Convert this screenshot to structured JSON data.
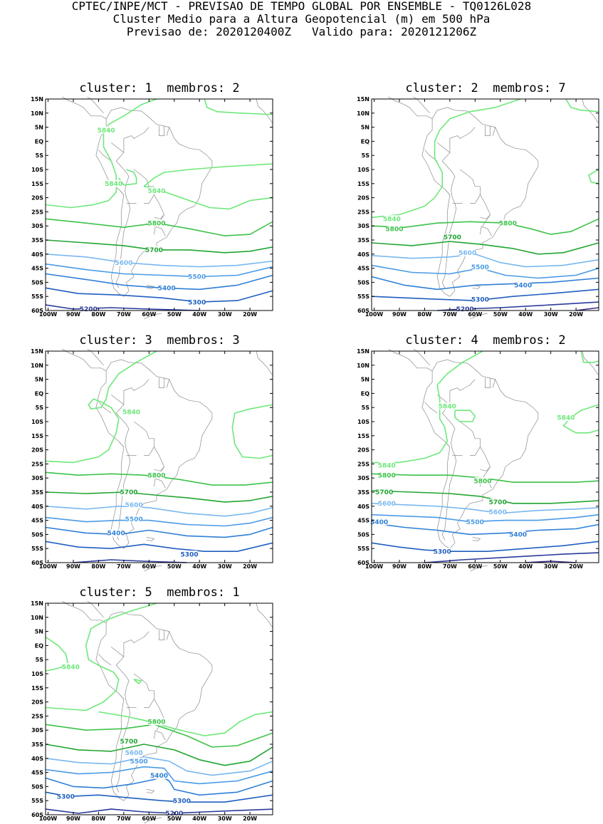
{
  "header": {
    "line1": "CPTEC/INPE/MCT - PREVISAO DE TEMPO GLOBAL POR ENSEMBLE - TQ0126L028",
    "line2": "Cluster Medio para a Altura Geopotencial (m) em 500 hPa",
    "line3": "Previsao de: 2020120400Z   Valido para: 2020121206Z"
  },
  "axes": {
    "lat_labels": [
      "15N",
      "10N",
      "5N",
      "EQ",
      "5S",
      "10S",
      "15S",
      "20S",
      "25S",
      "30S",
      "35S",
      "40S",
      "45S",
      "50S",
      "55S",
      "60S"
    ],
    "lon_labels": [
      "100W",
      "90W",
      "80W",
      "70W",
      "60W",
      "50W",
      "40W",
      "30W",
      "20W"
    ]
  },
  "colors": {
    "5200": "#2a3a9c",
    "5300": "#1f5fbf",
    "5400": "#2e7fd6",
    "5500": "#4a9be6",
    "5600": "#7ab8f0",
    "5700": "#22a532",
    "5800": "#3cc24a",
    "5840": "#6ee87a",
    "border": "#8a8a8a"
  },
  "panels": [
    {
      "title": "cluster: 1  membros: 2",
      "labels": [
        {
          "text": "5840",
          "lon": -77,
          "lat": 4,
          "level": "5840"
        },
        {
          "text": "5840",
          "lon": -74,
          "lat": -15,
          "level": "5840"
        },
        {
          "text": "5840",
          "lon": -57,
          "lat": -17.5,
          "level": "5840"
        },
        {
          "text": "5800",
          "lon": -57,
          "lat": -29,
          "level": "5800"
        },
        {
          "text": "5700",
          "lon": -58,
          "lat": -38.5,
          "level": "5700"
        },
        {
          "text": "5600",
          "lon": -70,
          "lat": -43,
          "level": "5600"
        },
        {
          "text": "5500",
          "lon": -41,
          "lat": -48,
          "level": "5500"
        },
        {
          "text": "5400",
          "lon": -53,
          "lat": -52,
          "level": "5400"
        },
        {
          "text": "5300",
          "lon": -41,
          "lat": -57,
          "level": "5300"
        },
        {
          "text": "5200",
          "lon": -84,
          "lat": -59.5,
          "level": "5200"
        }
      ]
    },
    {
      "title": "cluster: 2  membros: 7",
      "labels": [
        {
          "text": "5840",
          "lon": -93,
          "lat": -27.5,
          "level": "5840"
        },
        {
          "text": "5800",
          "lon": -92,
          "lat": -31,
          "level": "5800"
        },
        {
          "text": "5800",
          "lon": -47,
          "lat": -29,
          "level": "5800"
        },
        {
          "text": "5700",
          "lon": -69,
          "lat": -34,
          "level": "5700"
        },
        {
          "text": "5600",
          "lon": -63,
          "lat": -39.5,
          "level": "5600"
        },
        {
          "text": "5500",
          "lon": -58,
          "lat": -44.5,
          "level": "5500"
        },
        {
          "text": "5400",
          "lon": -41,
          "lat": -51,
          "level": "5400"
        },
        {
          "text": "5300",
          "lon": -58,
          "lat": -56,
          "level": "5300"
        },
        {
          "text": "5200",
          "lon": -64,
          "lat": -59.5,
          "level": "5200"
        }
      ]
    },
    {
      "title": "cluster: 3  membros: 3",
      "labels": [
        {
          "text": "5840",
          "lon": -67,
          "lat": -6.5,
          "level": "5840"
        },
        {
          "text": "5800",
          "lon": -57,
          "lat": -29,
          "level": "5800"
        },
        {
          "text": "5700",
          "lon": -68,
          "lat": -35,
          "level": "5700"
        },
        {
          "text": "5600",
          "lon": -66,
          "lat": -39.5,
          "level": "5600"
        },
        {
          "text": "5500",
          "lon": -66,
          "lat": -44.5,
          "level": "5500"
        },
        {
          "text": "5400",
          "lon": -73,
          "lat": -49.5,
          "level": "5400"
        },
        {
          "text": "5300",
          "lon": -44,
          "lat": -57,
          "level": "5300"
        }
      ]
    },
    {
      "title": "cluster: 4  membros: 2",
      "labels": [
        {
          "text": "5840",
          "lon": -71,
          "lat": -4.5,
          "level": "5840"
        },
        {
          "text": "5840",
          "lon": -24,
          "lat": -8.5,
          "level": "5840"
        },
        {
          "text": "5840",
          "lon": -95,
          "lat": -25.5,
          "level": "5840"
        },
        {
          "text": "5800",
          "lon": -95,
          "lat": -29,
          "level": "5800"
        },
        {
          "text": "5800",
          "lon": -57,
          "lat": -31,
          "level": "5800"
        },
        {
          "text": "5700",
          "lon": -96,
          "lat": -35,
          "level": "5700"
        },
        {
          "text": "5700",
          "lon": -51,
          "lat": -38.5,
          "level": "5700"
        },
        {
          "text": "5600",
          "lon": -95,
          "lat": -39,
          "level": "5600"
        },
        {
          "text": "5600",
          "lon": -51,
          "lat": -42,
          "level": "5600"
        },
        {
          "text": "5500",
          "lon": -60,
          "lat": -45.5,
          "level": "5500"
        },
        {
          "text": "5400",
          "lon": -98,
          "lat": -45.5,
          "level": "5400"
        },
        {
          "text": "5400",
          "lon": -43,
          "lat": -50,
          "level": "5400"
        },
        {
          "text": "5300",
          "lon": -73,
          "lat": -56,
          "level": "5300"
        }
      ]
    },
    {
      "title": "cluster: 5  membros: 1",
      "labels": [
        {
          "text": "5840",
          "lon": -91,
          "lat": -7.5,
          "level": "5840"
        },
        {
          "text": "5800",
          "lon": -57,
          "lat": -27,
          "level": "5800"
        },
        {
          "text": "5700",
          "lon": -68,
          "lat": -34,
          "level": "5700"
        },
        {
          "text": "5600",
          "lon": -66,
          "lat": -38,
          "level": "5600"
        },
        {
          "text": "5500",
          "lon": -64,
          "lat": -41,
          "level": "5500"
        },
        {
          "text": "5400",
          "lon": -56,
          "lat": -46,
          "level": "5400"
        },
        {
          "text": "5300",
          "lon": -93,
          "lat": -53.5,
          "level": "5300"
        },
        {
          "text": "5300",
          "lon": -47,
          "lat": -55,
          "level": "5300"
        },
        {
          "text": "5200",
          "lon": -50,
          "lat": -59.5,
          "level": "5200"
        }
      ]
    }
  ]
}
